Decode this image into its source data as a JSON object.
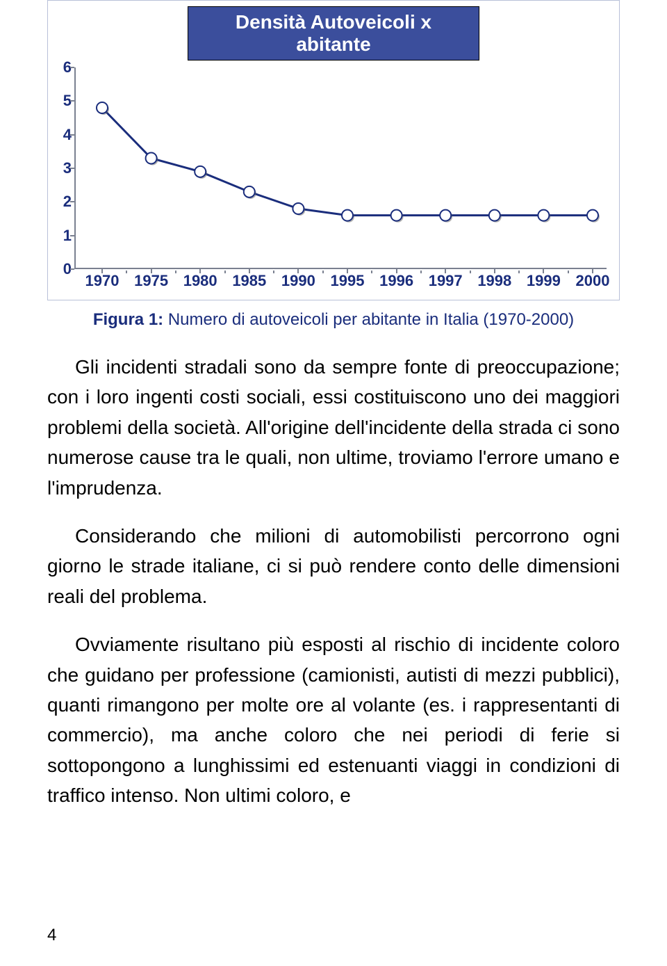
{
  "chart": {
    "title": "Densità Autoveicoli x abitante",
    "type": "line",
    "x_labels": [
      "1970",
      "1975",
      "1980",
      "1985",
      "1990",
      "1995",
      "1996",
      "1997",
      "1998",
      "1999",
      "2000"
    ],
    "values": [
      4.8,
      3.3,
      2.9,
      2.3,
      1.8,
      1.6,
      1.6,
      1.6,
      1.6,
      1.6,
      1.6
    ],
    "ylim": [
      0,
      6
    ],
    "ytick_step": 1,
    "background_color": "#ffffff",
    "grid_color": "#7a8090",
    "line_color": "#1a2d7c",
    "marker_fill": "#ffffff",
    "marker_stroke": "#1a2d7c",
    "marker_shadow": "#666666",
    "marker_radius": 8,
    "line_width": 3,
    "label_color": "#1a2d7c",
    "label_fontsize": 22,
    "title_bg": "#3b4e9c",
    "title_color": "#ffffff",
    "title_fontsize": 28
  },
  "caption": {
    "prefix": "Figura 1:",
    "text": " Numero di autoveicoli per abitante in Italia (1970-2000)"
  },
  "paragraphs": [
    "Gli incidenti stradali sono da sempre fonte di preoccupazione; con i loro ingenti costi sociali, essi costituiscono uno dei maggiori problemi della società. All'origine dell'incidente della strada ci sono numerose cause tra le quali, non ultime, troviamo l'errore umano e l'imprudenza.",
    "Considerando che milioni di automobilisti percorrono ogni giorno le strade italiane, ci si può rendere conto delle dimensioni reali del problema.",
    "Ovviamente risultano più esposti al rischio di incidente coloro che guidano per professione (camionisti, autisti di mezzi pubblici), quanti rimangono per molte ore al volante (es. i rappresentanti di commercio), ma anche coloro che nei periodi di ferie si sottopongono a lunghissimi ed estenuanti viaggi in condizioni di traffico intenso. Non ultimi coloro, e"
  ],
  "page_number": "4"
}
